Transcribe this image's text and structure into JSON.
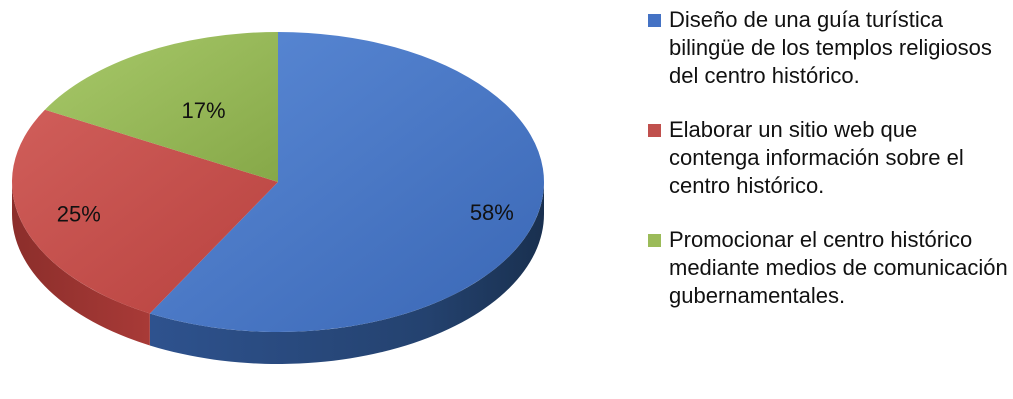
{
  "chart_data": {
    "type": "pie",
    "style": "3d",
    "categories": [
      "Diseño de una guía turística bilingüe de los templos religiosos del centro histórico.",
      "Elaborar un sitio web que contenga información sobre el centro histórico.",
      "Promocionar el centro histórico mediante medios de comunicación gubernamentales."
    ],
    "values": [
      58,
      25,
      17
    ],
    "labels": [
      "58%",
      "25%",
      "17%"
    ],
    "colors": [
      "#4472C4",
      "#C0504D",
      "#9BBB59"
    ],
    "legend_position": "right"
  }
}
